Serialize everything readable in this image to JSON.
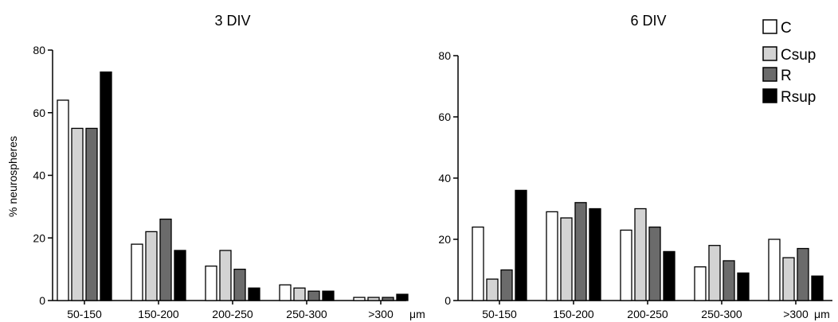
{
  "legend": [
    {
      "label": "C",
      "color": "#ffffff"
    },
    {
      "label": "Csup",
      "color": "#d3d3d3"
    },
    {
      "label": "R",
      "color": "#6b6b6b"
    },
    {
      "label": "Rsup",
      "color": "#000000"
    }
  ],
  "chart_data": [
    {
      "type": "bar",
      "title": "3 DIV",
      "ylabel": "% neurospheres",
      "xunit": "μm",
      "categories": [
        "50-150",
        "150-200",
        "200-250",
        "250-300",
        ">300"
      ],
      "ylim": [
        0,
        80
      ],
      "yticks": [
        "0",
        "20",
        "40",
        "60",
        "80"
      ],
      "series": [
        {
          "name": "C",
          "values": [
            64,
            18,
            11,
            5,
            1
          ]
        },
        {
          "name": "Csup",
          "values": [
            55,
            22,
            16,
            4,
            1
          ]
        },
        {
          "name": "R",
          "values": [
            55,
            26,
            10,
            3,
            1
          ]
        },
        {
          "name": "Rsup",
          "values": [
            73,
            16,
            4,
            3,
            2
          ]
        }
      ]
    },
    {
      "type": "bar",
      "title": "6 DIV",
      "ylabel": "",
      "xunit": "μm",
      "categories": [
        "50-150",
        "150-200",
        "200-250",
        "250-300",
        ">300"
      ],
      "ylim": [
        0,
        80
      ],
      "yticks": [
        "0",
        "20",
        "40",
        "60",
        "80"
      ],
      "series": [
        {
          "name": "C",
          "values": [
            24,
            29,
            23,
            11,
            20
          ]
        },
        {
          "name": "Csup",
          "values": [
            7,
            27,
            30,
            18,
            14
          ]
        },
        {
          "name": "R",
          "values": [
            10,
            32,
            24,
            13,
            17
          ]
        },
        {
          "name": "Rsup",
          "values": [
            36,
            30,
            16,
            9,
            8
          ]
        }
      ]
    }
  ]
}
